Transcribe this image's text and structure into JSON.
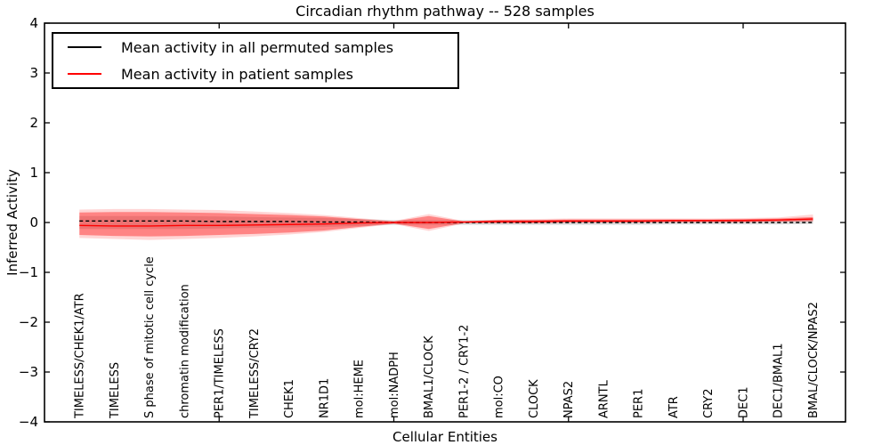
{
  "figure": {
    "title": "Circadian rhythm pathway -- 528 samples",
    "xlabel": "Cellular Entities",
    "ylabel": "Inferred Activity"
  },
  "legend": {
    "position": "upper left",
    "entries": [
      {
        "label": "Mean activity in all permuted samples",
        "color": "#000000"
      },
      {
        "label": "Mean activity in patient samples",
        "color": "#ff0000"
      }
    ]
  },
  "chart_data": {
    "type": "line",
    "title": "Circadian rhythm pathway -- 528 samples",
    "xlabel": "Cellular Entities",
    "ylabel": "Inferred Activity",
    "ylim": [
      -4,
      4
    ],
    "yticks": [
      4,
      3,
      2,
      1,
      0,
      -1,
      -2,
      -3,
      -4
    ],
    "grid": false,
    "legend_position": "upper left",
    "categories": [
      "TIMELESS/CHEK1/ATR",
      "TIMELESS",
      "S phase of mitotic cell cycle",
      "chromatin modification",
      "PER1/TIMELESS",
      "TIMELESS/CRY2",
      "CHEK1",
      "NR1D1",
      "mol:HEME",
      "mol:NADPH",
      "BMAL1/CLOCK",
      "PER1-2 / CRY1-2",
      "mol:CO",
      "CLOCK",
      "NPAS2",
      "ARNTL",
      "PER1",
      "ATR",
      "CRY2",
      "DEC1",
      "DEC1/BMAL1",
      "BMAL/CLOCK/NPAS2"
    ],
    "series": [
      {
        "name": "Mean activity in all permuted samples",
        "color": "#000000",
        "style": "dashed",
        "values": [
          0.03,
          0.03,
          0.03,
          0.03,
          0.02,
          0.02,
          0.02,
          0.01,
          0.01,
          0.0,
          0.0,
          0.0,
          0.0,
          0.0,
          0.0,
          0.0,
          0.0,
          0.0,
          0.0,
          0.0,
          0.0,
          0.0
        ]
      },
      {
        "name": "Mean activity in patient samples",
        "color": "#ff0000",
        "style": "solid",
        "values": [
          -0.06,
          -0.07,
          -0.07,
          -0.06,
          -0.06,
          -0.05,
          -0.04,
          -0.03,
          -0.01,
          0.0,
          0.0,
          0.01,
          0.02,
          0.02,
          0.03,
          0.03,
          0.03,
          0.04,
          0.04,
          0.04,
          0.05,
          0.07
        ]
      }
    ],
    "bands": [
      {
        "name": "permuted-samples-std-band",
        "color": "#000000",
        "alpha": 0.13,
        "upper": [
          0.13,
          0.13,
          0.13,
          0.13,
          0.12,
          0.11,
          0.1,
          0.09,
          0.07,
          0.05,
          0.05,
          0.05,
          0.05,
          0.05,
          0.05,
          0.05,
          0.05,
          0.05,
          0.05,
          0.05,
          0.06,
          0.09
        ],
        "lower": [
          -0.13,
          -0.13,
          -0.13,
          -0.13,
          -0.12,
          -0.11,
          -0.1,
          -0.09,
          -0.07,
          -0.05,
          -0.05,
          -0.05,
          -0.05,
          -0.05,
          -0.05,
          -0.05,
          -0.05,
          -0.04,
          -0.04,
          -0.04,
          -0.04,
          -0.03
        ]
      },
      {
        "name": "patient-samples-outer-band",
        "color": "#ff0000",
        "alpha": 0.16,
        "upper": [
          0.26,
          0.27,
          0.27,
          0.26,
          0.25,
          0.22,
          0.19,
          0.15,
          0.09,
          0.03,
          0.17,
          0.03,
          0.06,
          0.07,
          0.08,
          0.08,
          0.08,
          0.08,
          0.08,
          0.09,
          0.1,
          0.16
        ],
        "lower": [
          -0.31,
          -0.33,
          -0.35,
          -0.33,
          -0.31,
          -0.28,
          -0.24,
          -0.19,
          -0.11,
          -0.03,
          -0.17,
          -0.02,
          -0.02,
          -0.02,
          -0.01,
          -0.01,
          -0.01,
          0.0,
          0.0,
          0.0,
          0.01,
          0.02
        ]
      },
      {
        "name": "patient-samples-std-band",
        "color": "#ff0000",
        "alpha": 0.38,
        "upper": [
          0.2,
          0.21,
          0.21,
          0.2,
          0.19,
          0.17,
          0.15,
          0.12,
          0.07,
          0.02,
          0.13,
          0.02,
          0.05,
          0.05,
          0.06,
          0.06,
          0.06,
          0.06,
          0.06,
          0.07,
          0.08,
          0.11
        ],
        "lower": [
          -0.25,
          -0.27,
          -0.28,
          -0.27,
          -0.25,
          -0.23,
          -0.2,
          -0.16,
          -0.09,
          -0.02,
          -0.13,
          -0.01,
          -0.01,
          -0.01,
          0.0,
          0.0,
          0.0,
          0.01,
          0.01,
          0.01,
          0.02,
          0.03
        ]
      }
    ]
  }
}
